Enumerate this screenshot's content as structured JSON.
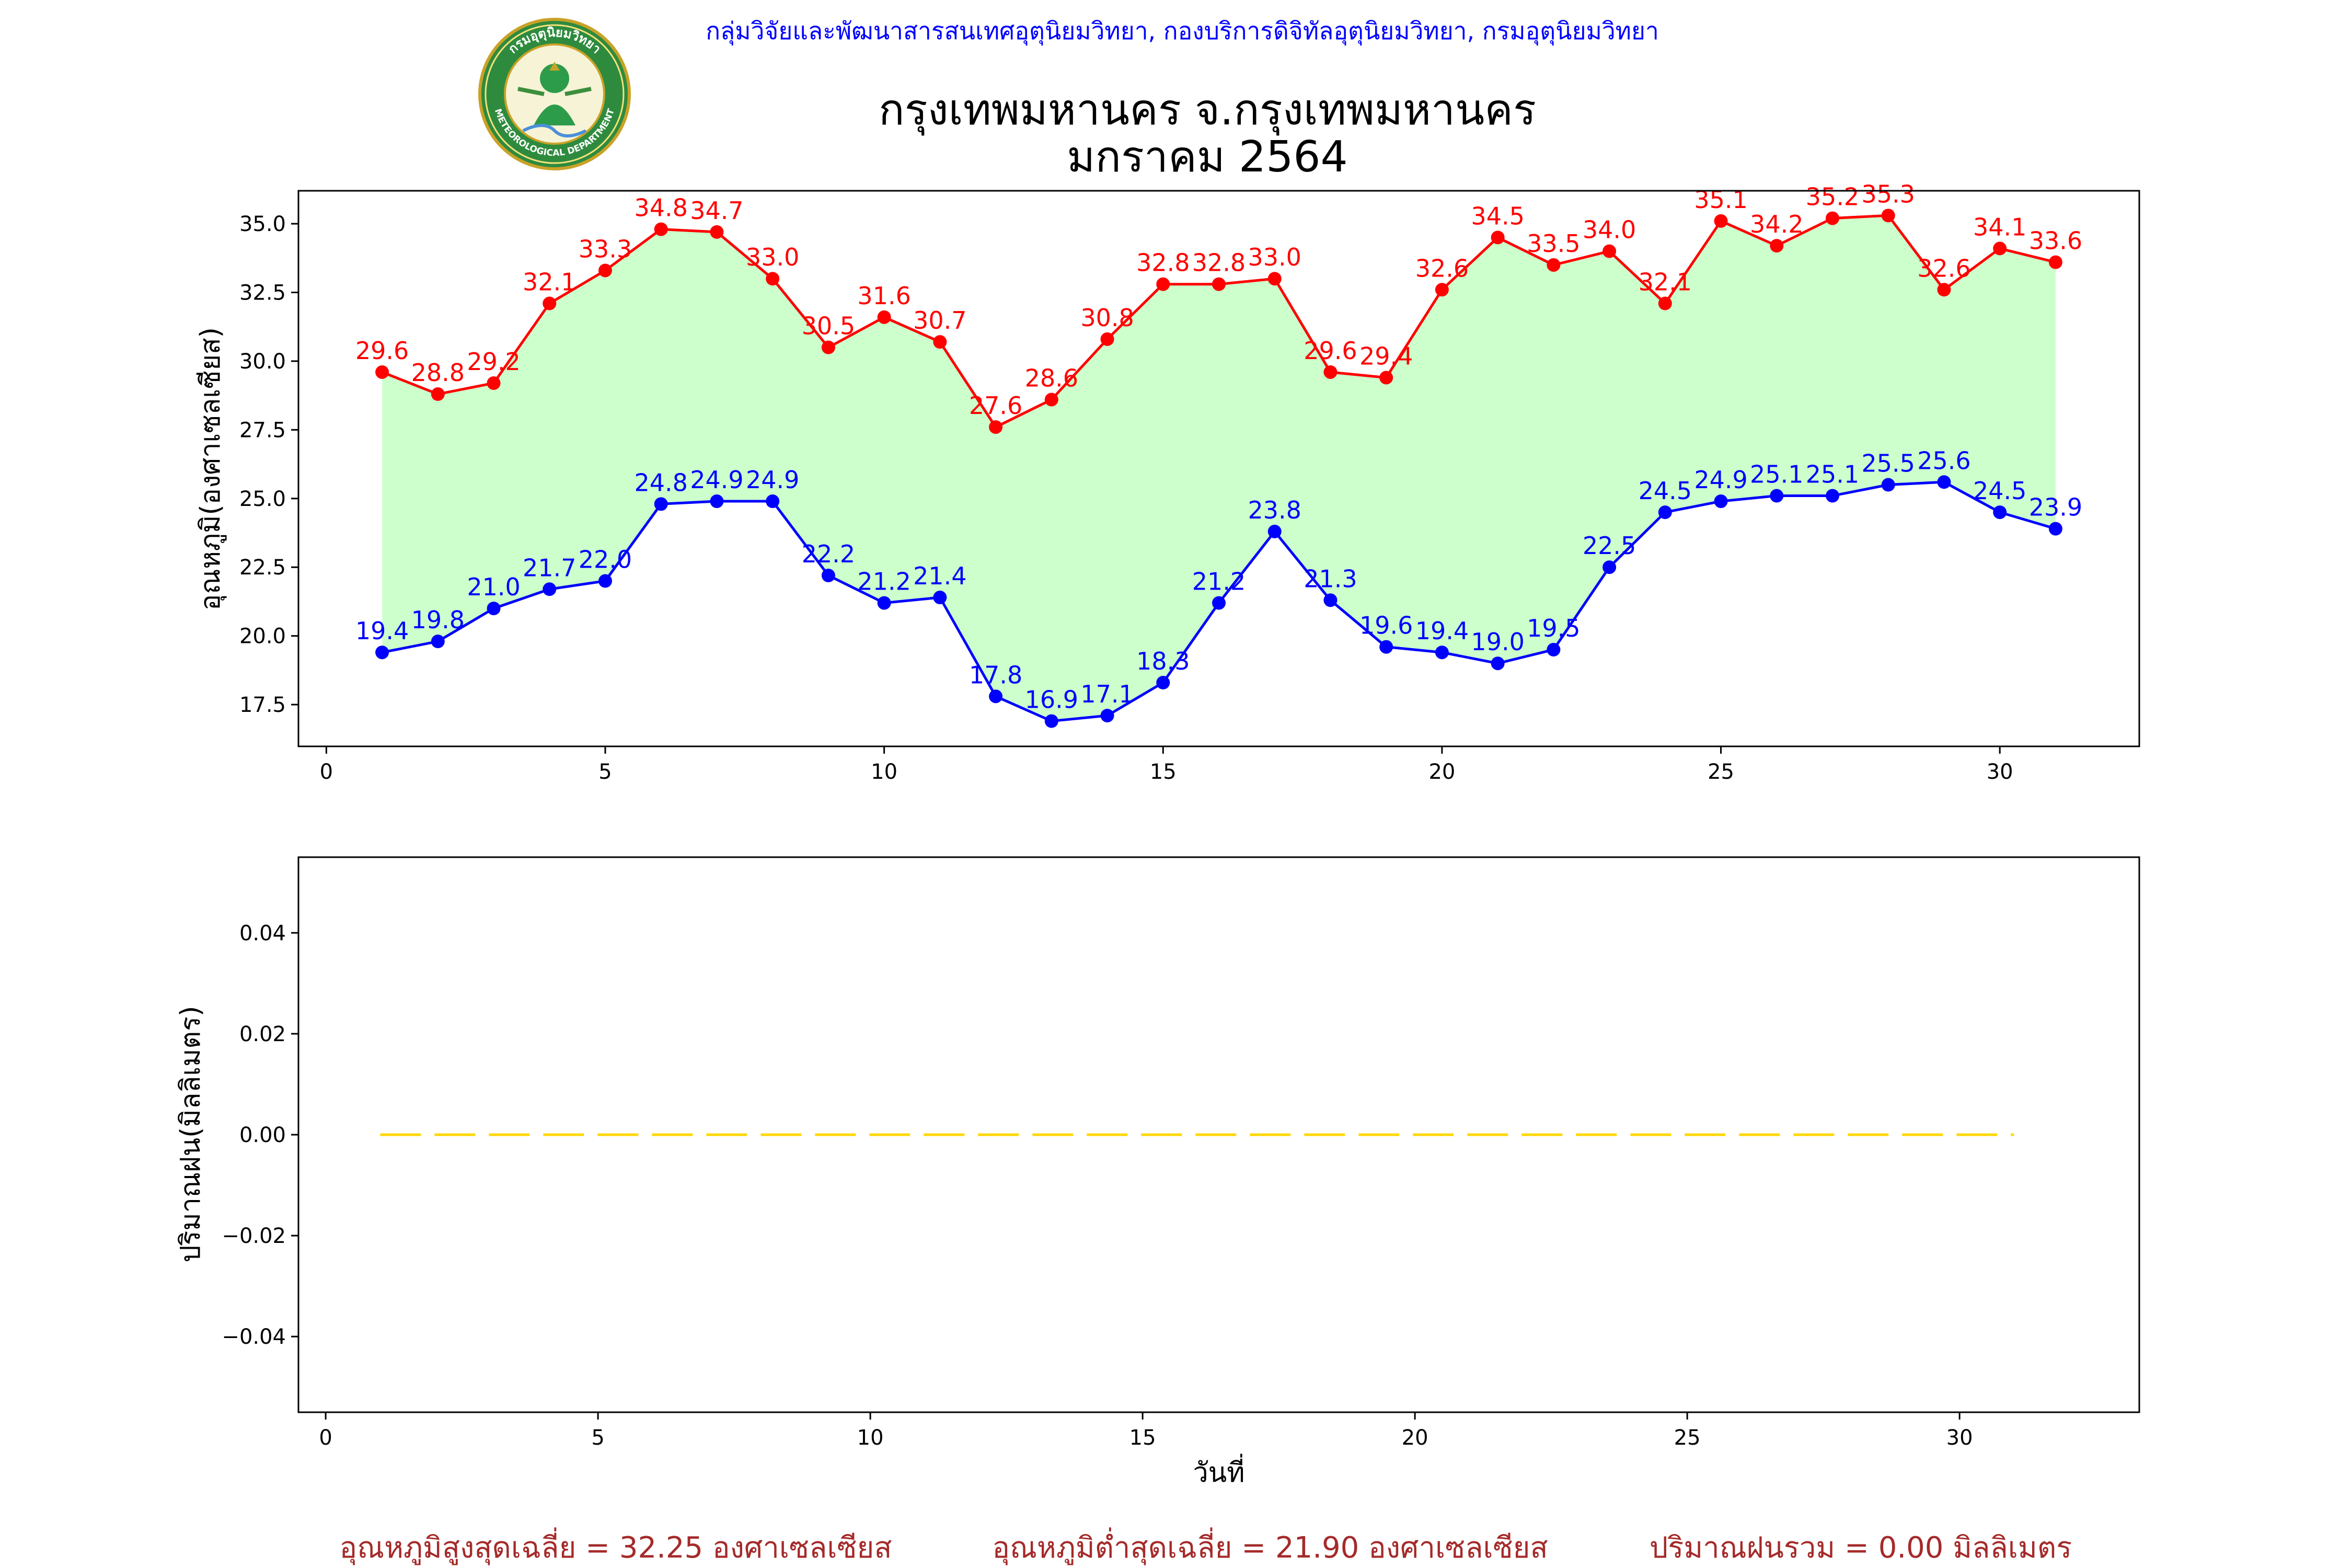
{
  "header": {
    "credit": "กลุ่มวิจัยและพัฒนาสารสนเทศอุตุนิยมวิทยา, กองบริการดิจิทัลอุตุนิยมวิทยา, กรมอุตุนิยมวิทยา",
    "title_line1": "กรุงเทพมหานคร จ.กรุงเทพมหานคร",
    "title_line2": "มกราคม 2564"
  },
  "logo": {
    "top_text": "กรมอุตุนิยมวิทยา",
    "bottom_text": "METEOROLOGICAL DEPARTMENT"
  },
  "footer": {
    "avg_max": "อุณหภูมิสูงสุดเฉลี่ย = 32.25 องศาเซลเซียส",
    "avg_min": "อุณหภูมิต่ำสุดเฉลี่ย = 21.90 องศาเซลเซียส",
    "rain_total": "ปริมาณฝนรวม = 0.00 มิลลิเมตร"
  },
  "colors": {
    "max_series": "#ff0000",
    "min_series": "#0000ff",
    "fill_between": "#ccffcc",
    "rain_line": "#ffd700",
    "footer_text": "#a52a2a",
    "credit_text": "#0000ff"
  },
  "chart_data": [
    {
      "type": "line",
      "ylabel": "อุณหภูมิ(องศาเซลเซียส)",
      "xlabel": "",
      "x": [
        1,
        2,
        3,
        4,
        5,
        6,
        7,
        8,
        9,
        10,
        11,
        12,
        13,
        14,
        15,
        16,
        17,
        18,
        19,
        20,
        21,
        22,
        23,
        24,
        25,
        26,
        27,
        28,
        29,
        30,
        31
      ],
      "xlim": [
        -0.5,
        32.5
      ],
      "ylim": [
        15.98,
        36.2
      ],
      "xticks": [
        0,
        5,
        10,
        15,
        20,
        25,
        30
      ],
      "yticks": [
        17.5,
        20.0,
        22.5,
        25.0,
        27.5,
        30.0,
        32.5,
        35.0
      ],
      "ytick_labels": [
        "17.5",
        "20.0",
        "22.5",
        "25.0",
        "27.5",
        "30.0",
        "32.5",
        "35.0"
      ],
      "fill_between_series": true,
      "series": [
        {
          "color": "#ff0000",
          "values": [
            29.6,
            28.8,
            29.2,
            32.1,
            33.3,
            34.8,
            34.7,
            33.0,
            30.5,
            31.6,
            30.7,
            27.6,
            28.6,
            30.8,
            32.8,
            32.8,
            33.0,
            29.6,
            29.4,
            32.6,
            34.5,
            33.5,
            34.0,
            32.1,
            35.1,
            34.2,
            35.2,
            35.3,
            32.6,
            34.1,
            33.6
          ],
          "labels": [
            "29.6",
            "28.8",
            "29.2",
            "32.1",
            "33.3",
            "34.8",
            "34.7",
            "33.0",
            "30.5",
            "31.6",
            "30.7",
            "27.6",
            "28.6",
            "30.8",
            "32.8",
            "32.8",
            "33.0",
            "29.6",
            "29.4",
            "32.6",
            "34.5",
            "33.5",
            "34.0",
            "32.1",
            "35.1",
            "34.2",
            "35.2",
            "35.3",
            "32.6",
            "34.1",
            "33.6"
          ]
        },
        {
          "color": "#0000ff",
          "values": [
            19.4,
            19.8,
            21.0,
            21.7,
            22.0,
            24.8,
            24.9,
            24.9,
            22.2,
            21.2,
            21.4,
            17.8,
            16.9,
            17.1,
            18.3,
            21.2,
            23.8,
            21.3,
            19.6,
            19.4,
            19.0,
            19.5,
            22.5,
            24.5,
            24.9,
            25.1,
            25.1,
            25.5,
            25.6,
            24.5,
            23.9
          ],
          "labels": [
            "19.4",
            "19.8",
            "21.0",
            "21.7",
            "22.0",
            "24.8",
            "24.9",
            "24.9",
            "22.2",
            "21.2",
            "21.4",
            "17.8",
            "16.9",
            "17.1",
            "18.3",
            "21.2",
            "23.8",
            "21.3",
            "19.6",
            "19.4",
            "19.0",
            "19.5",
            "22.5",
            "24.5",
            "24.9",
            "25.1",
            "25.1",
            "25.5",
            "25.6",
            "24.5",
            "23.9"
          ]
        }
      ]
    },
    {
      "type": "line",
      "ylabel": "ปริมาณฝน(มิลลิเมตร)",
      "xlabel": "วันที่",
      "x": [
        1,
        31
      ],
      "xlim": [
        -0.5,
        33.3
      ],
      "ylim": [
        -0.055,
        0.055
      ],
      "xticks": [
        0,
        5,
        10,
        15,
        20,
        25,
        30
      ],
      "yticks": [
        -0.04,
        -0.02,
        0.0,
        0.02,
        0.04
      ],
      "ytick_labels": [
        "−0.04",
        "−0.02",
        "0.00",
        "0.02",
        "0.04"
      ],
      "series": [
        {
          "color": "#ffd700",
          "line_style": "dashed",
          "values": [
            0.0,
            0.0
          ]
        }
      ]
    }
  ]
}
